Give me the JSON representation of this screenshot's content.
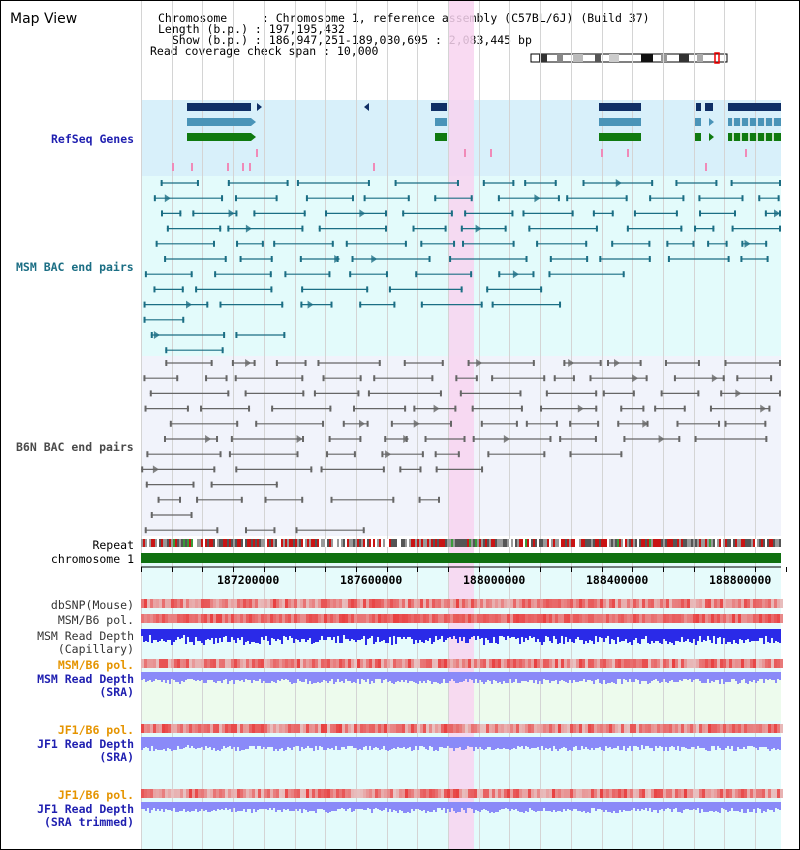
{
  "page": {
    "title": "Map View"
  },
  "info": {
    "lines": [
      "Chromosome     : Chromosome 1, reference assembly (C57BL/6J) (Build 37)",
      "Length (b.p.) : 197,195,432",
      "  Show (b.p.) : 186,947,251-189,030,695 : 2,083,445 bp",
      "Read coverage check span : 10,000"
    ]
  },
  "tracks": {
    "refseq": "RefSeq Genes",
    "msm_bac": "MSM BAC end pairs",
    "b6n_bac": "B6N BAC end pairs",
    "repeat": "Repeat",
    "chromosome": "chromosome 1",
    "dbsnp": "dbSNP(Mouse)",
    "msm_b6_pol_1": "MSM/B6 pol.",
    "msm_read_depth_cap_1": "MSM Read Depth",
    "msm_read_depth_cap_2": "(Capillary)",
    "msm_b6_pol_2": "MSM/B6 pol.",
    "msm_read_depth_sra_1": "MSM Read Depth",
    "msm_read_depth_sra_2": "(SRA)",
    "jf1_b6_pol_1": "JF1/B6 pol.",
    "jf1_read_depth_sra_1": "JF1 Read Depth",
    "jf1_read_depth_sra_2": "(SRA)",
    "jf1_b6_pol_2": "JF1/B6 pol.",
    "jf1_read_depth_trim_1": "JF1 Read Depth",
    "jf1_read_depth_trim_2": "(SRA trimmed)"
  },
  "axis": {
    "ticks": [
      "187200000",
      "187600000",
      "188000000",
      "188400000",
      "188800000"
    ]
  },
  "colors": {
    "refseq_bg": "#d8f0fa",
    "msm_bg": "#e3fbfb",
    "b6n_bg": "#f1f3fb",
    "highlight": "#f8d4f0",
    "gene_navy": "#0f2f66",
    "gene_blue": "#4a94b8",
    "gene_green": "#0f7a10",
    "msm_line": "#1b6e84",
    "b6n_line": "#666666",
    "chromosome_bar": "#107010",
    "depth_blue": "#2a2ae8",
    "depth_light": "#8a8af8",
    "pol_red": "#e84a4a"
  }
}
